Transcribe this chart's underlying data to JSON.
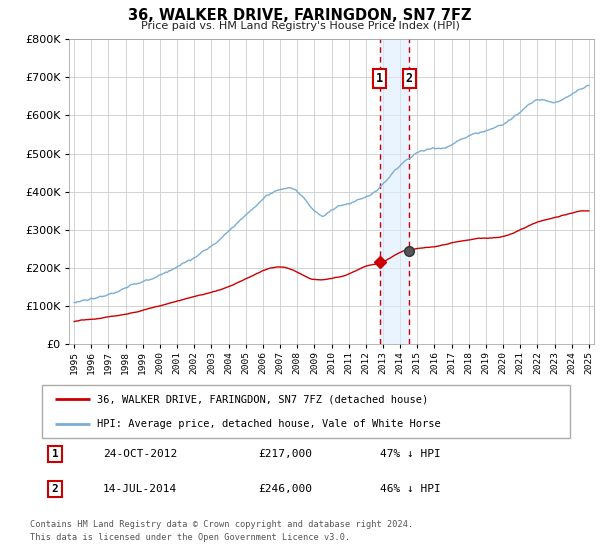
{
  "title": "36, WALKER DRIVE, FARINGDON, SN7 7FZ",
  "subtitle": "Price paid vs. HM Land Registry's House Price Index (HPI)",
  "ylim": [
    0,
    800000
  ],
  "yticks": [
    0,
    100000,
    200000,
    300000,
    400000,
    500000,
    600000,
    700000,
    800000
  ],
  "ytick_labels": [
    "£0",
    "£100K",
    "£200K",
    "£300K",
    "£400K",
    "£500K",
    "£600K",
    "£700K",
    "£800K"
  ],
  "xlim": [
    1994.7,
    2025.3
  ],
  "sale_color": "#cc0000",
  "hpi_color": "#7aaed6",
  "sale_label": "36, WALKER DRIVE, FARINGDON, SN7 7FZ (detached house)",
  "hpi_label": "HPI: Average price, detached house, Vale of White Horse",
  "event1_date": 2012.81,
  "event1_price_val": 217000,
  "event1_price": "£217,000",
  "event1_hpi": "47% ↓ HPI",
  "event1_text": "24-OCT-2012",
  "event2_date": 2014.54,
  "event2_price_val": 246000,
  "event2_price": "£246,000",
  "event2_hpi": "46% ↓ HPI",
  "event2_text": "14-JUL-2014",
  "footnote1": "Contains HM Land Registry data © Crown copyright and database right 2024.",
  "footnote2": "This data is licensed under the Open Government Licence v3.0.",
  "background_color": "#ffffff",
  "grid_color": "#cccccc",
  "shade_color": "#ddeeff"
}
